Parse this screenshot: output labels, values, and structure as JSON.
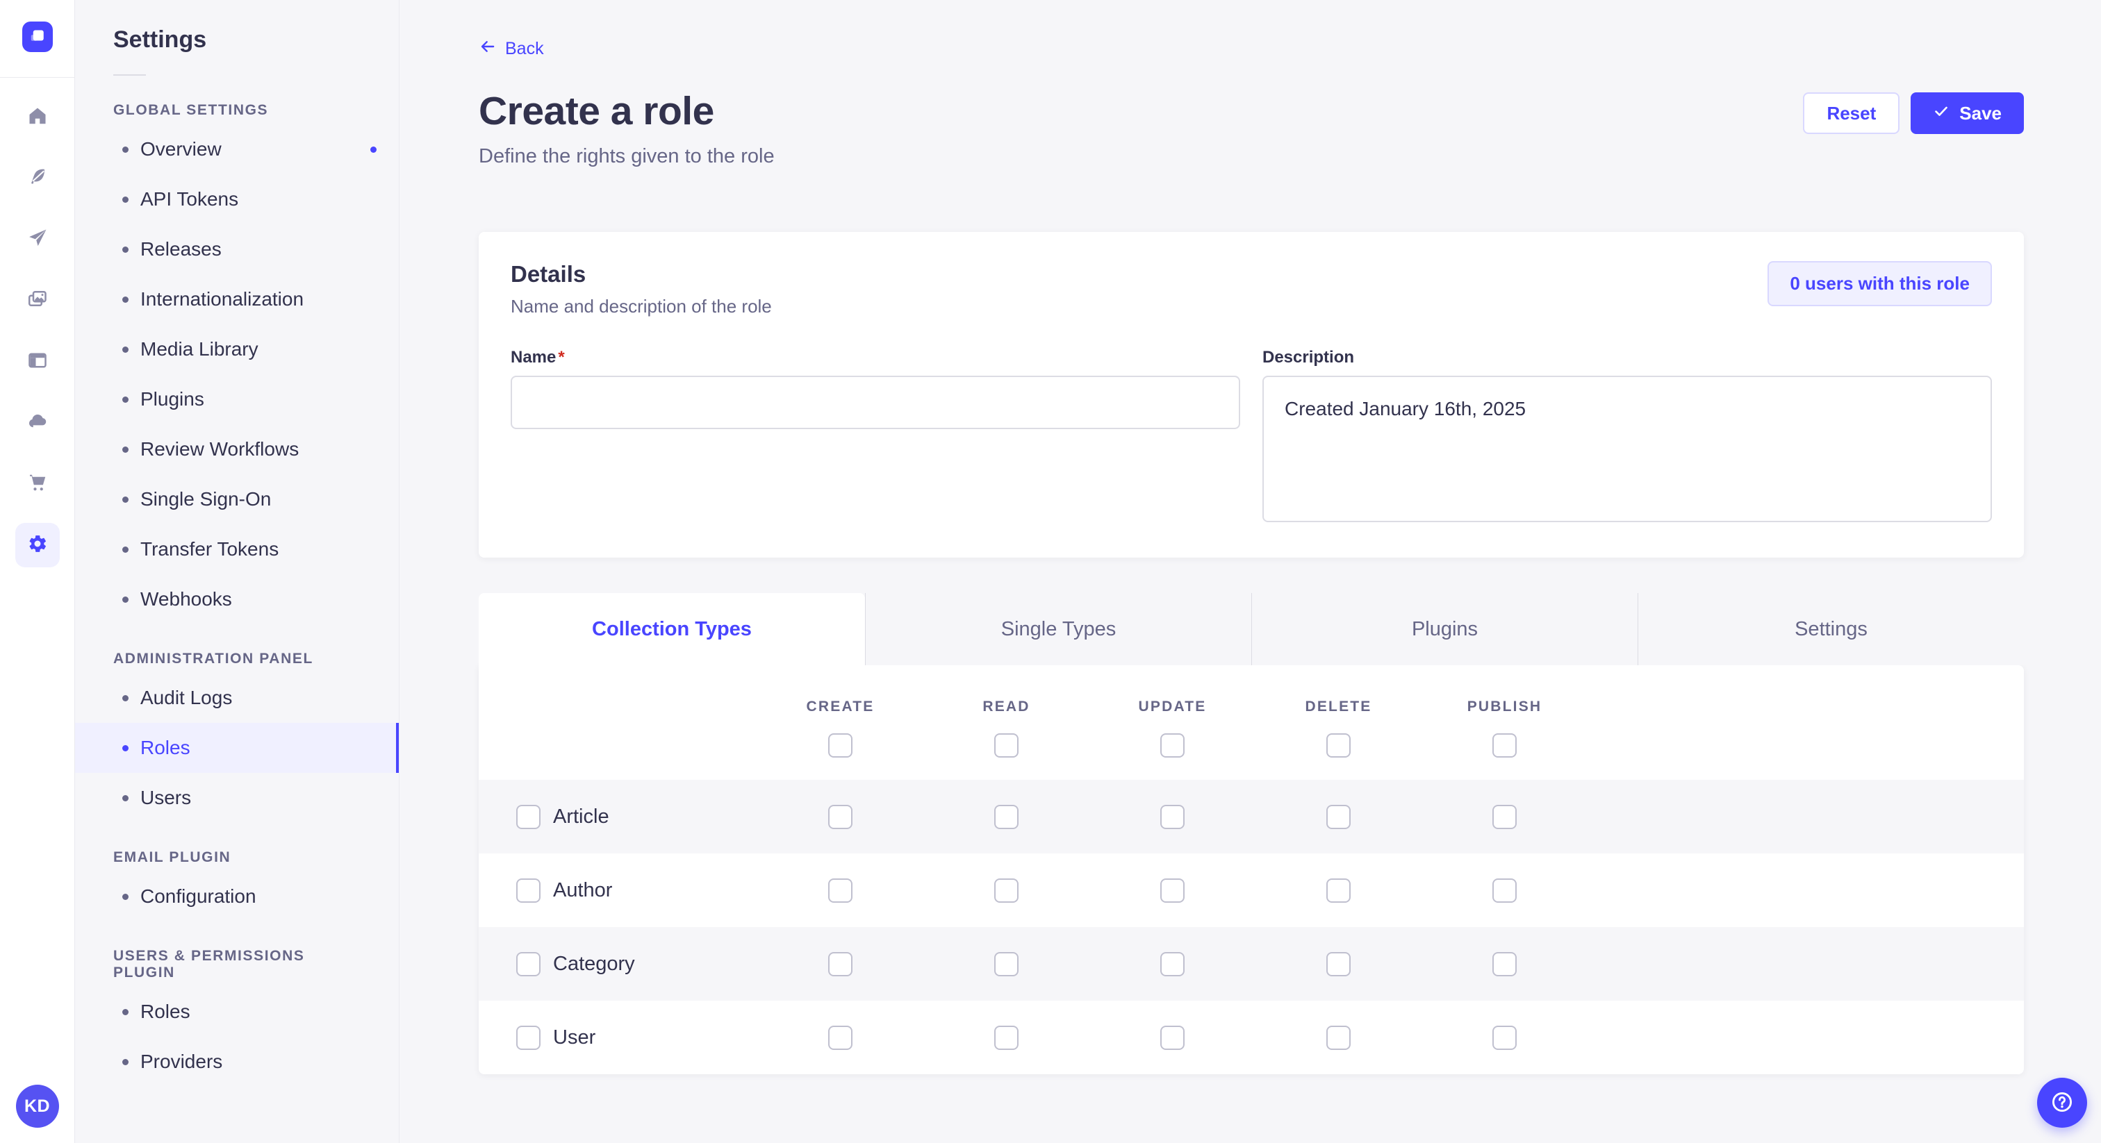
{
  "brand": {
    "user_initials": "KD"
  },
  "colors": {
    "primary": "#4945ff",
    "primary_light_bg": "#f0f0ff",
    "primary_border": "#d9d8ff",
    "text": "#32324d",
    "text_muted": "#666687",
    "page_bg": "#f6f6f9",
    "card_bg": "#ffffff",
    "divider": "#eaeaef",
    "input_border": "#dcdce4",
    "checkbox_border": "#c0c0cf",
    "required_red": "#d02b20",
    "avatar_bg": "#5652f2"
  },
  "icon_rail": {
    "items": [
      {
        "name": "home-icon"
      },
      {
        "name": "content-manager-icon"
      },
      {
        "name": "releases-icon"
      },
      {
        "name": "media-library-icon"
      },
      {
        "name": "content-type-builder-icon"
      },
      {
        "name": "deploy-icon"
      },
      {
        "name": "marketplace-icon"
      },
      {
        "name": "settings-icon",
        "active": true
      }
    ]
  },
  "settings_nav": {
    "title": "Settings",
    "sections": [
      {
        "label": "GLOBAL SETTINGS",
        "items": [
          {
            "label": "Overview",
            "notification": true
          },
          {
            "label": "API Tokens"
          },
          {
            "label": "Releases"
          },
          {
            "label": "Internationalization"
          },
          {
            "label": "Media Library"
          },
          {
            "label": "Plugins"
          },
          {
            "label": "Review Workflows"
          },
          {
            "label": "Single Sign-On"
          },
          {
            "label": "Transfer Tokens"
          },
          {
            "label": "Webhooks"
          }
        ]
      },
      {
        "label": "ADMINISTRATION PANEL",
        "items": [
          {
            "label": "Audit Logs"
          },
          {
            "label": "Roles",
            "active": true
          },
          {
            "label": "Users"
          }
        ]
      },
      {
        "label": "EMAIL PLUGIN",
        "items": [
          {
            "label": "Configuration"
          }
        ]
      },
      {
        "label": "USERS & PERMISSIONS PLUGIN",
        "items": [
          {
            "label": "Roles"
          },
          {
            "label": "Providers"
          }
        ]
      }
    ]
  },
  "page": {
    "back_label": "Back",
    "back_icon": "arrow-left-icon",
    "title": "Create a role",
    "subtitle": "Define the rights given to the role",
    "actions": {
      "reset": "Reset",
      "save": "Save",
      "save_icon": "check-icon"
    }
  },
  "details": {
    "title": "Details",
    "subtitle": "Name and description of the role",
    "users_count_button": "0 users with this role",
    "fields": {
      "name": {
        "label": "Name",
        "required_mark": "*",
        "value": "",
        "placeholder": ""
      },
      "description": {
        "label": "Description",
        "value": "Created January 16th, 2025"
      }
    }
  },
  "permissions": {
    "tabs": [
      {
        "label": "Collection Types",
        "active": true
      },
      {
        "label": "Single Types"
      },
      {
        "label": "Plugins"
      },
      {
        "label": "Settings"
      }
    ],
    "columns": [
      "CREATE",
      "READ",
      "UPDATE",
      "DELETE",
      "PUBLISH"
    ],
    "rows": [
      {
        "label": "Article"
      },
      {
        "label": "Author"
      },
      {
        "label": "Category"
      },
      {
        "label": "User"
      }
    ],
    "all_checkboxes_checked": false
  },
  "help": {
    "icon": "question-circle-icon"
  }
}
